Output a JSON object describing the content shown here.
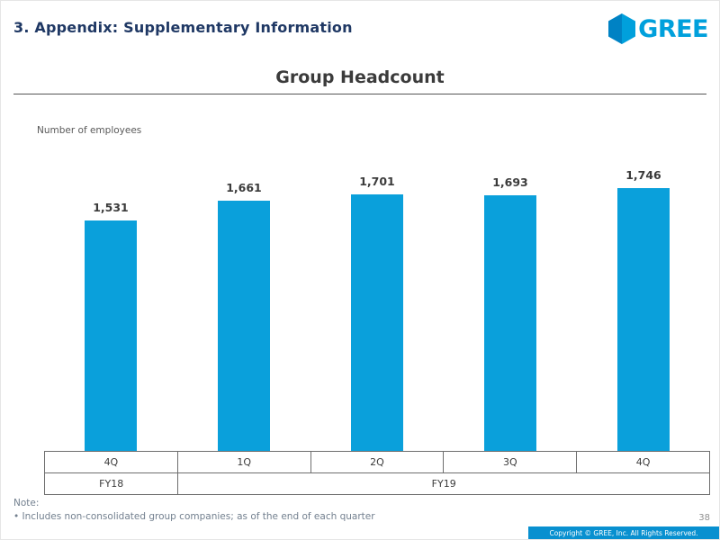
{
  "slide": {
    "section_header": "3. Appendix: Supplementary Information",
    "logo_text": "GREE",
    "note_label": "Note:",
    "note_text": "• Includes non-consolidated group companies; as of the end of each quarter",
    "page_number": "38",
    "footer_copyright": "Copyright © GREE, Inc. All Rights Reserved."
  },
  "colors": {
    "bar": "#0aa0db",
    "brand_blue": "#00a0dc",
    "header_text": "#1f3864",
    "footer_bg": "#0890d0"
  },
  "chart_data": {
    "type": "bar",
    "title": "Group Headcount",
    "ylabel": "Number of employees",
    "categories": [
      "4Q",
      "1Q",
      "2Q",
      "3Q",
      "4Q"
    ],
    "values": [
      1531,
      1661,
      1701,
      1693,
      1746
    ],
    "value_labels": [
      "1,531",
      "1,661",
      "1,701",
      "1,693",
      "1,746"
    ],
    "fiscal_year_groups": [
      {
        "label": "FY18",
        "span": 1
      },
      {
        "label": "FY19",
        "span": 4
      }
    ],
    "ylim": [
      0,
      2000
    ],
    "grid": false,
    "legend_position": "none"
  }
}
